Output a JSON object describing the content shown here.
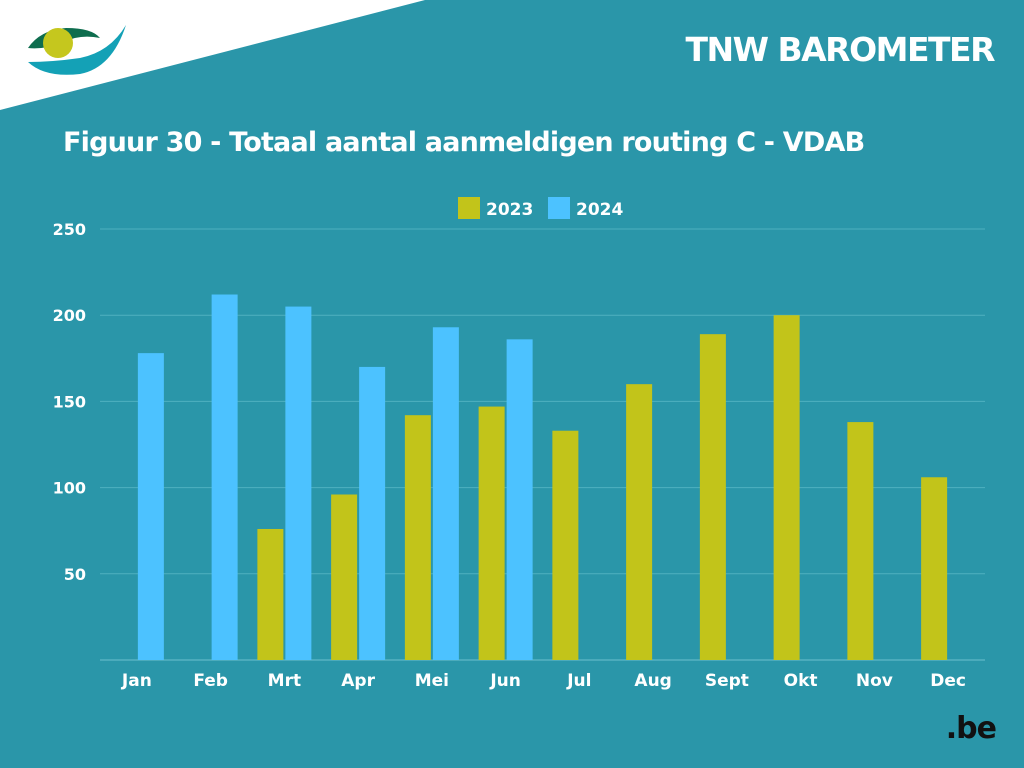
{
  "header": {
    "title": "TNW BAROMETER"
  },
  "footer": {
    "logo_text": ".be"
  },
  "colors": {
    "background": "#2a96a9",
    "series_2023": "#c2c41a",
    "series_2024": "#4cc2ff",
    "logo_white": "#ffffff",
    "logo_teal": "#14a1b6",
    "logo_green": "#0e6d4e",
    "logo_yellow": "#c5c71e"
  },
  "chart_data": {
    "type": "bar",
    "title": "Figuur 30 - Totaal aantal aanmeldigen routing C - VDAB",
    "xlabel": "",
    "ylabel": "",
    "categories": [
      "Jan",
      "Feb",
      "Mrt",
      "Apr",
      "Mei",
      "Jun",
      "Jul",
      "Aug",
      "Sept",
      "Okt",
      "Nov",
      "Dec"
    ],
    "series": [
      {
        "name": "2023",
        "values": [
          null,
          null,
          76,
          96,
          142,
          147,
          133,
          160,
          189,
          200,
          138,
          106
        ]
      },
      {
        "name": "2024",
        "values": [
          178,
          212,
          205,
          170,
          193,
          186,
          null,
          null,
          null,
          null,
          null,
          null
        ]
      }
    ],
    "ylim": [
      0,
      250
    ],
    "yticks": [
      50,
      100,
      150,
      200,
      250
    ],
    "grid": true,
    "legend": "top-center"
  }
}
